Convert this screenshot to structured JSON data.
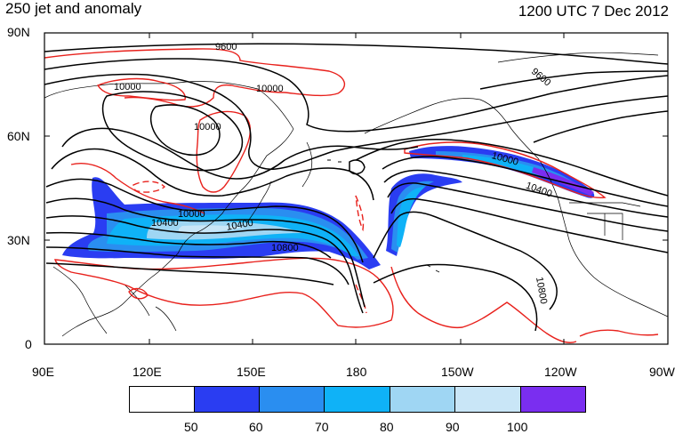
{
  "header": {
    "title": "250 jet and anomaly",
    "valid_time": "1200 UTC 7 Dec 2012"
  },
  "map": {
    "lat_labels": [
      "90N",
      "60N",
      "30N",
      "0"
    ],
    "lon_labels": [
      "90E",
      "120E",
      "150E",
      "180",
      "150W",
      "120W",
      "90W"
    ],
    "contour_labels": [
      "9600",
      "9600",
      "10000",
      "10000",
      "10000",
      "10000",
      "10000",
      "10400",
      "10400",
      "10400",
      "10800",
      "10800"
    ],
    "colors": {
      "height_contour": "#000000",
      "anomaly_contour": "#e8211c",
      "coastline": "#000000"
    }
  },
  "colorbar": {
    "labels": [
      "50",
      "60",
      "70",
      "80",
      "90",
      "100"
    ],
    "colors": [
      "#ffffff",
      "#2a3df2",
      "#2a8ef0",
      "#0fb2f7",
      "#9fd6f3",
      "#c9e6f7",
      "#7a2ef0"
    ]
  }
}
